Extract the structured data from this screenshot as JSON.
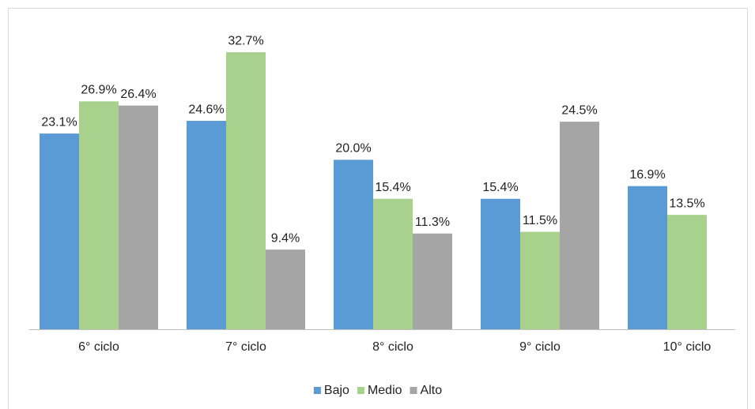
{
  "chart_data": {
    "type": "bar",
    "categories": [
      "6° ciclo",
      "7° ciclo",
      "8° ciclo",
      "9° ciclo",
      "10° ciclo"
    ],
    "series": [
      {
        "name": "Bajo",
        "color": "#5b9bd5",
        "values": [
          23.1,
          24.6,
          20.0,
          15.4,
          16.9
        ],
        "value_labels": [
          "23.1%",
          "24.6%",
          "20.0%",
          "15.4%",
          "16.9%"
        ]
      },
      {
        "name": "Medio",
        "color": "#a9d18e",
        "values": [
          26.9,
          32.7,
          15.4,
          11.5,
          13.5
        ],
        "value_labels": [
          "26.9%",
          "32.7%",
          "15.4%",
          "11.5%",
          "13.5%"
        ]
      },
      {
        "name": "Alto",
        "color": "#a5a5a5",
        "values": [
          26.4,
          9.4,
          11.3,
          24.5,
          null
        ],
        "value_labels": [
          "26.4%",
          "9.4%",
          "11.3%",
          "24.5%",
          null
        ]
      }
    ],
    "legend": "bottom"
  }
}
